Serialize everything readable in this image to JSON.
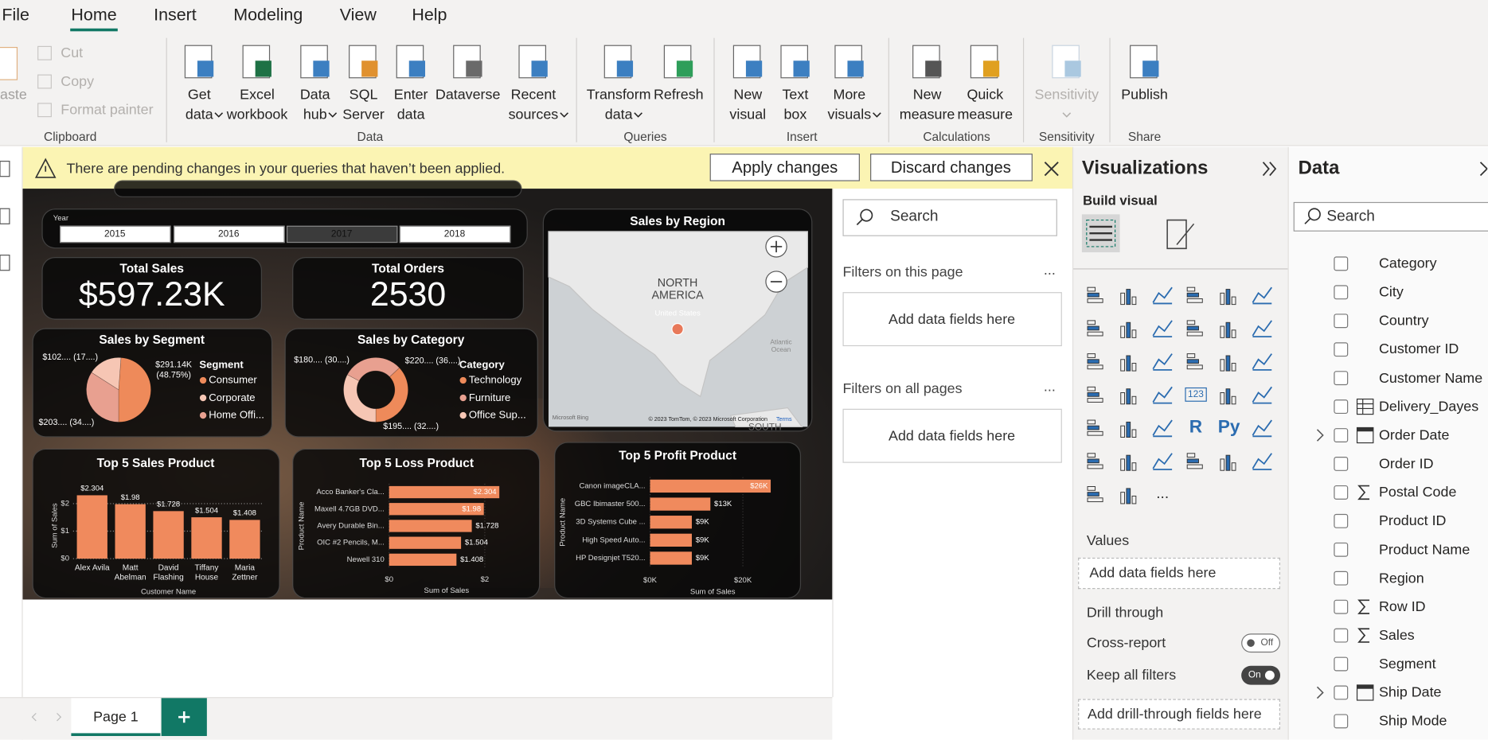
{
  "menu": {
    "items": [
      "File",
      "Home",
      "Insert",
      "Modeling",
      "View",
      "Help"
    ],
    "active": "Home"
  },
  "clipboard": {
    "paste": "aste",
    "items": [
      "Cut",
      "Copy",
      "Format painter"
    ],
    "label": "Clipboard"
  },
  "ribbon": [
    {
      "label": "Data",
      "buttons": [
        {
          "lines": [
            "Get",
            "data"
          ],
          "dropdown": true
        },
        {
          "lines": [
            "Excel",
            "workbook"
          ]
        },
        {
          "lines": [
            "Data",
            "hub"
          ],
          "dropdown": true
        },
        {
          "lines": [
            "SQL",
            "Server"
          ]
        },
        {
          "lines": [
            "Enter",
            "data"
          ]
        },
        {
          "lines": [
            "Dataverse"
          ]
        },
        {
          "lines": [
            "Recent",
            "sources"
          ],
          "dropdown": true
        }
      ]
    },
    {
      "label": "Queries",
      "buttons": [
        {
          "lines": [
            "Transform",
            "data"
          ],
          "dropdown": true
        },
        {
          "lines": [
            "Refresh"
          ]
        }
      ]
    },
    {
      "label": "Insert",
      "buttons": [
        {
          "lines": [
            "New",
            "visual"
          ]
        },
        {
          "lines": [
            "Text",
            "box"
          ]
        },
        {
          "lines": [
            "More",
            "visuals"
          ],
          "dropdown": true
        }
      ]
    },
    {
      "label": "Calculations",
      "buttons": [
        {
          "lines": [
            "New",
            "measure"
          ]
        },
        {
          "lines": [
            "Quick",
            "measure"
          ]
        }
      ]
    },
    {
      "label": "Sensitivity",
      "buttons": [
        {
          "lines": [
            "Sensitivity"
          ],
          "dropdown": true,
          "disabled": true
        }
      ]
    },
    {
      "label": "Share",
      "buttons": [
        {
          "lines": [
            "Publish"
          ]
        }
      ]
    }
  ],
  "banner": {
    "message": "There are pending changes in your queries that haven’t been applied.",
    "apply": "Apply changes",
    "discard": "Discard changes"
  },
  "report": {
    "slicer": {
      "title": "Year",
      "options": [
        "2015",
        "2016",
        "2017",
        "2018"
      ],
      "selected": "2017"
    },
    "kpis": [
      {
        "title": "Total Sales",
        "value": "$597.23K"
      },
      {
        "title": "Total Orders",
        "value": "2530"
      }
    ],
    "map": {
      "title": "Sales by Region",
      "continent": "NORTH AMERICA",
      "country": "United States",
      "ocean": "Atlantic Ocean",
      "south": "SOUTH",
      "bing": "Microsoft Bing",
      "credits": "© 2023 TomTom, © 2023 Microsoft Corporation",
      "terms": "Terms"
    }
  },
  "chart_data": [
    {
      "type": "pie",
      "title": "Sales by Segment",
      "legend_title": "Segment",
      "categories": [
        "Consumer",
        "Corporate",
        "Home Offi..."
      ],
      "values": [
        291.14,
        102,
        203
      ],
      "value_labels": [
        "$291.14K (48.75%)",
        "$102.... (17....)",
        "$203.... (34....)"
      ],
      "colors": [
        "#ee8a5a",
        "#f6c6b4",
        "#e8a090"
      ]
    },
    {
      "type": "donut",
      "title": "Sales by Category",
      "legend_title": "Category",
      "categories": [
        "Technology",
        "Furniture",
        "Office Sup..."
      ],
      "values": [
        220,
        180,
        195
      ],
      "value_labels": [
        "$220.... (36....)",
        "$180.... (30....)",
        "$195.... (32....)"
      ],
      "colors": [
        "#ee8a5a",
        "#e8a090",
        "#f6c6b4"
      ]
    },
    {
      "type": "bar",
      "title": "Top 5 Sales Product",
      "x_label": "Customer Name",
      "y_label": "Sum of Sales",
      "categories": [
        "Alex Avila",
        "Matt Abelman",
        "David Flashing",
        "Tiffany House",
        "Maria Zettner"
      ],
      "values": [
        2.304,
        1.98,
        1.728,
        1.504,
        1.408
      ],
      "value_labels": [
        "$2.304",
        "$1.98",
        "$1.728",
        "$1.504",
        "$1.408"
      ],
      "color": "#f08a5d",
      "ylim": [
        0,
        2.4
      ],
      "yticks": [
        {
          "value": 0,
          "label": "$0"
        },
        {
          "value": 1,
          "label": "$1"
        },
        {
          "value": 2,
          "label": "$2"
        }
      ]
    },
    {
      "type": "hbar",
      "title": "Top 5 Loss Product",
      "x_label": "Sum of Sales",
      "y_label": "Product Name",
      "categories": [
        "Acco Banker's Cla...",
        "Maxell 4.7GB DVD...",
        "Avery Durable Bin...",
        "OIC #2 Pencils, M...",
        "Newell 310"
      ],
      "values": [
        2.304,
        1.98,
        1.728,
        1.504,
        1.408
      ],
      "value_labels": [
        "$2.304",
        "$1.98",
        "$1.728",
        "$1.504",
        "$1.408"
      ],
      "color": "#f08a5d",
      "xlim": [
        0,
        2.4
      ],
      "xticks": [
        {
          "value": 0,
          "label": "$0"
        },
        {
          "value": 2,
          "label": "$2"
        }
      ]
    },
    {
      "type": "hbar",
      "title": "Top 5 Profit Product",
      "x_label": "Sum of Sales",
      "y_label": "Product Name",
      "categories": [
        "Canon imageCLA...",
        "GBC Ibimaster 500...",
        "3D Systems Cube ...",
        "High Speed Auto...",
        "HP Designjet T520..."
      ],
      "values": [
        26,
        13,
        9,
        9,
        9
      ],
      "value_labels": [
        "$26K",
        "$13K",
        "$9K",
        "$9K",
        "$9K"
      ],
      "color": "#f08a5d",
      "xlim": [
        0,
        27
      ],
      "xticks": [
        {
          "value": 0,
          "label": "$0K"
        },
        {
          "value": 20,
          "label": "$20K"
        }
      ]
    }
  ],
  "filters": {
    "search": "Search",
    "this_page": "Filters on this page",
    "all_pages": "Filters on all pages",
    "placeholder": "Add data fields here",
    "more": "..."
  },
  "visualizations": {
    "title": "Visualizations",
    "build": "Build visual",
    "icon_texts": [
      "123",
      "R",
      "Py",
      "..."
    ],
    "values": "Values",
    "values_placeholder": "Add data fields here",
    "drill": "Drill through",
    "cross_report": "Cross-report",
    "cross_state": "Off",
    "keep_filters": "Keep all filters",
    "keep_state": "On",
    "drill_placeholder": "Add drill-through fields here"
  },
  "data_pane": {
    "title": "Data",
    "search": "Search",
    "fields": [
      {
        "name": "Category"
      },
      {
        "name": "City"
      },
      {
        "name": "Country"
      },
      {
        "name": "Customer ID"
      },
      {
        "name": "Customer Name"
      },
      {
        "name": "Delivery_Dayes",
        "icon": "table"
      },
      {
        "name": "Order Date",
        "icon": "calendar",
        "expandable": true
      },
      {
        "name": "Order ID"
      },
      {
        "name": "Postal Code",
        "icon": "sum"
      },
      {
        "name": "Product ID"
      },
      {
        "name": "Product Name"
      },
      {
        "name": "Region"
      },
      {
        "name": "Row ID",
        "icon": "sum"
      },
      {
        "name": "Sales",
        "icon": "sum"
      },
      {
        "name": "Segment"
      },
      {
        "name": "Ship Date",
        "icon": "calendar",
        "expandable": true
      },
      {
        "name": "Ship Mode"
      }
    ]
  },
  "pages": {
    "tabs": [
      "Page 1"
    ]
  }
}
